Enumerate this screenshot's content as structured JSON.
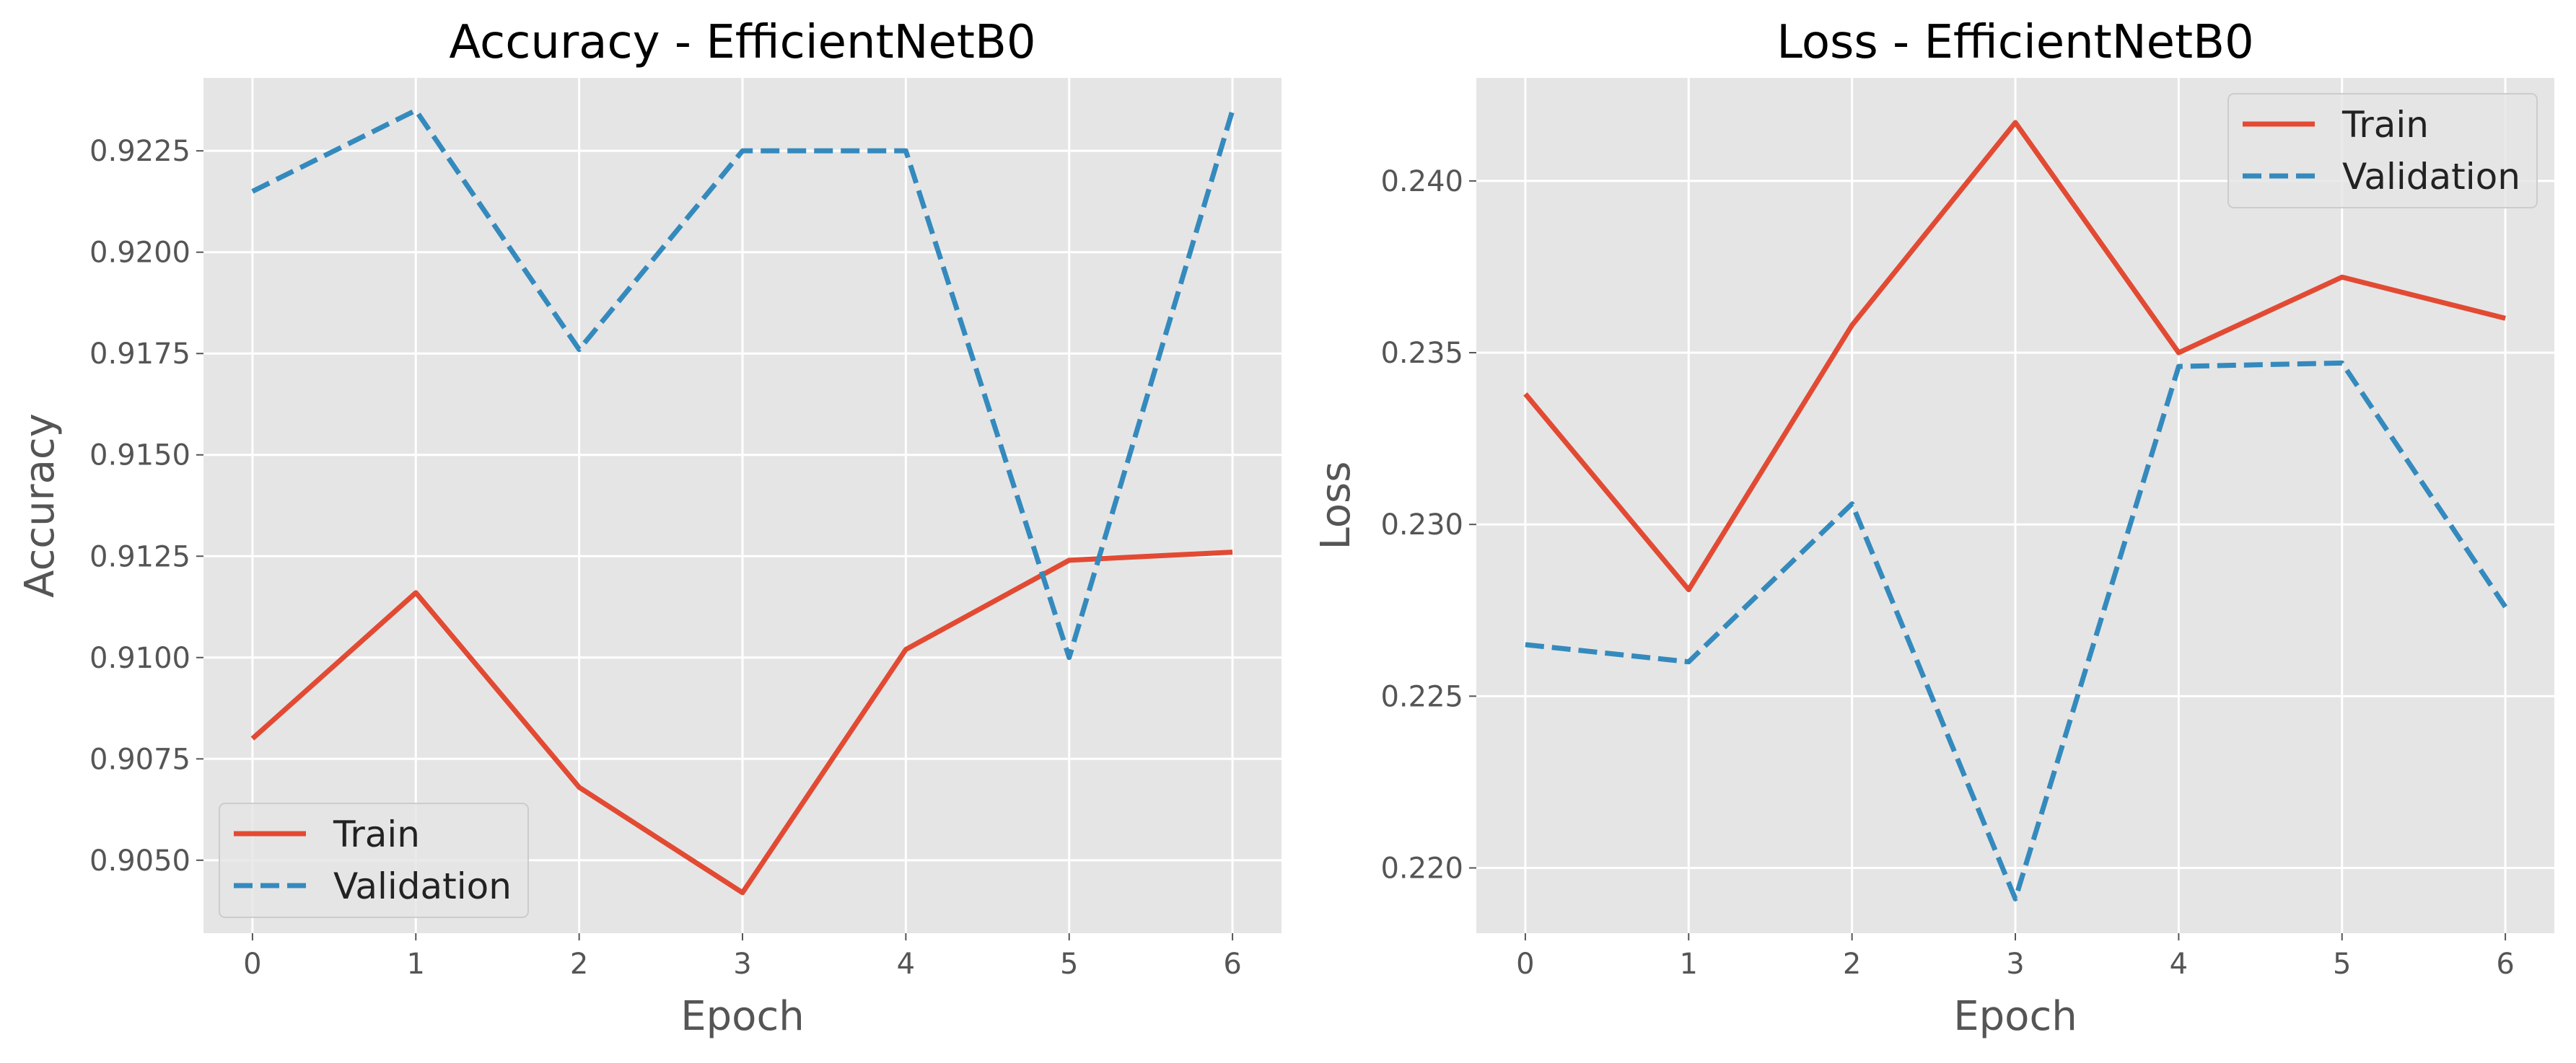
{
  "chart_data": [
    {
      "type": "line",
      "title": "Accuracy - EfficientNetB0",
      "xlabel": "Epoch",
      "ylabel": "Accuracy",
      "x": [
        0,
        1,
        2,
        3,
        4,
        5,
        6
      ],
      "xticks": [
        "0",
        "1",
        "2",
        "3",
        "4",
        "5",
        "6"
      ],
      "xlim": [
        -0.3,
        6.3
      ],
      "ylim": [
        0.9032,
        0.9243
      ],
      "yticks": [
        "0.9050",
        "0.9075",
        "0.9100",
        "0.9125",
        "0.9150",
        "0.9175",
        "0.9200",
        "0.9225"
      ],
      "grid": true,
      "legend": "lower-left",
      "series": [
        {
          "name": "Train",
          "color": "#E24A33",
          "style": "solid",
          "values": [
            0.908,
            0.9116,
            0.9068,
            0.9042,
            0.9102,
            0.9124,
            0.9126
          ]
        },
        {
          "name": "Validation",
          "color": "#348ABD",
          "style": "dashed",
          "values": [
            0.9215,
            0.9235,
            0.9176,
            0.9225,
            0.9225,
            0.91,
            0.9235
          ]
        }
      ]
    },
    {
      "type": "line",
      "title": "Loss - EfficientNetB0",
      "xlabel": "Epoch",
      "ylabel": "Loss",
      "x": [
        0,
        1,
        2,
        3,
        4,
        5,
        6
      ],
      "xticks": [
        "0",
        "1",
        "2",
        "3",
        "4",
        "5",
        "6"
      ],
      "xlim": [
        -0.3,
        6.3
      ],
      "ylim": [
        0.2181,
        0.243
      ],
      "yticks": [
        "0.220",
        "0.225",
        "0.230",
        "0.235",
        "0.240"
      ],
      "grid": true,
      "legend": "upper-right",
      "series": [
        {
          "name": "Train",
          "color": "#E24A33",
          "style": "solid",
          "values": [
            0.2338,
            0.2281,
            0.2358,
            0.2417,
            0.235,
            0.2372,
            0.236
          ]
        },
        {
          "name": "Validation",
          "color": "#348ABD",
          "style": "dashed",
          "values": [
            0.2265,
            0.226,
            0.2306,
            0.2191,
            0.2346,
            0.2347,
            0.2276
          ]
        }
      ]
    }
  ]
}
